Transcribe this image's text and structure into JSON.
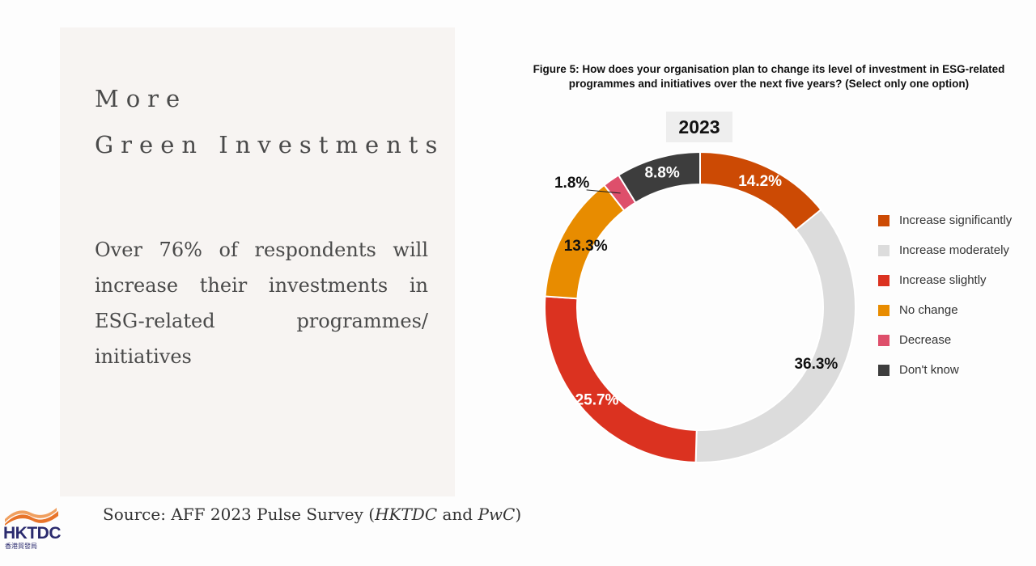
{
  "headline": {
    "line1": "More",
    "line2": "Green Investments"
  },
  "body_text": "Over 76% of respondents will increase their investments in ESG-related programmes/ initiatives",
  "source": {
    "prefix": "Source: AFF 2023 Pulse Survey (",
    "org1": "HKTDC",
    "and": " and ",
    "org2": "PwC",
    "suffix": ")"
  },
  "logo": {
    "text": "HKTDC",
    "subtext": "香港貿發局",
    "icon": "hktdc-logo-icon"
  },
  "figure": {
    "title": "Figure 5: How does your organisation plan to change its level of investment in ESG-related programmes and initiatives over the next five years? (Select only one option)",
    "year": "2023"
  },
  "chart_data": {
    "type": "pie",
    "variant": "donut",
    "title": "Figure 5: How does your organisation plan to change its level of investment in ESG-related programmes and initiatives over the next five years? (Select only one option)",
    "subtitle": "2023",
    "legend_position": "right",
    "slices": [
      {
        "label": "Increase significantly",
        "value": 14.2,
        "display": "14.2%",
        "color": "#cc4a04"
      },
      {
        "label": "Increase moderately",
        "value": 36.3,
        "display": "36.3%",
        "color": "#dcdcdc"
      },
      {
        "label": "Increase slightly",
        "value": 25.7,
        "display": "25.7%",
        "color": "#db3220"
      },
      {
        "label": "No change",
        "value": 13.3,
        "display": "13.3%",
        "color": "#e88c00"
      },
      {
        "label": "Decrease",
        "value": 1.8,
        "display": "1.8%",
        "color": "#de4f6b"
      },
      {
        "label": "Don't know",
        "value": 8.8,
        "display": "8.8%",
        "color": "#3d3d3d"
      }
    ]
  }
}
